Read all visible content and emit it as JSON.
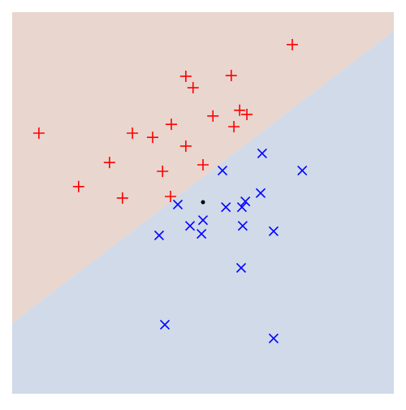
{
  "chart_data": {
    "type": "scatter",
    "xlim": [
      -5,
      5
    ],
    "ylim": [
      -5,
      5
    ],
    "regions": {
      "above_color": "#e8d6cf",
      "below_color": "#d0dae9"
    },
    "boundary": {
      "x": [
        -5,
        5
      ],
      "y": [
        -3.15,
        4.51
      ]
    },
    "series": [
      {
        "color": "#ff0000",
        "marker": "plus",
        "x": [
          2.34,
          -0.45,
          0.74,
          -0.26,
          0.96,
          1.15,
          0.26,
          -0.83,
          0.81,
          -4.3,
          -1.85,
          -1.32,
          -0.45,
          -2.45,
          0,
          -1.06,
          -3.26,
          -2.11,
          -0.85
        ],
        "y": [
          4.15,
          3.32,
          3.34,
          3.02,
          2.43,
          2.32,
          2.28,
          2.06,
          2.0,
          1.83,
          1.83,
          1.72,
          1.49,
          1.06,
          1.0,
          0.83,
          0.43,
          0.13,
          0.17
        ]
      },
      {
        "color": "#0000ff",
        "marker": "cross",
        "x": [
          1.55,
          2.6,
          0.51,
          1.51,
          -0.66,
          1.11,
          0.6,
          1.02,
          0,
          -0.34,
          1.04,
          -1.15,
          -0.04,
          1.85,
          1.0,
          -1.0,
          1.85
        ],
        "y": [
          1.3,
          0.85,
          0.85,
          0.26,
          -0.04,
          0.04,
          -0.11,
          -0.11,
          -0.45,
          -0.6,
          -0.6,
          -0.85,
          -0.81,
          -0.74,
          -1.7,
          -3.19,
          -3.55
        ]
      },
      {
        "color": "#000000",
        "marker": "dot",
        "x": [
          0
        ],
        "y": [
          0.02
        ]
      }
    ]
  }
}
